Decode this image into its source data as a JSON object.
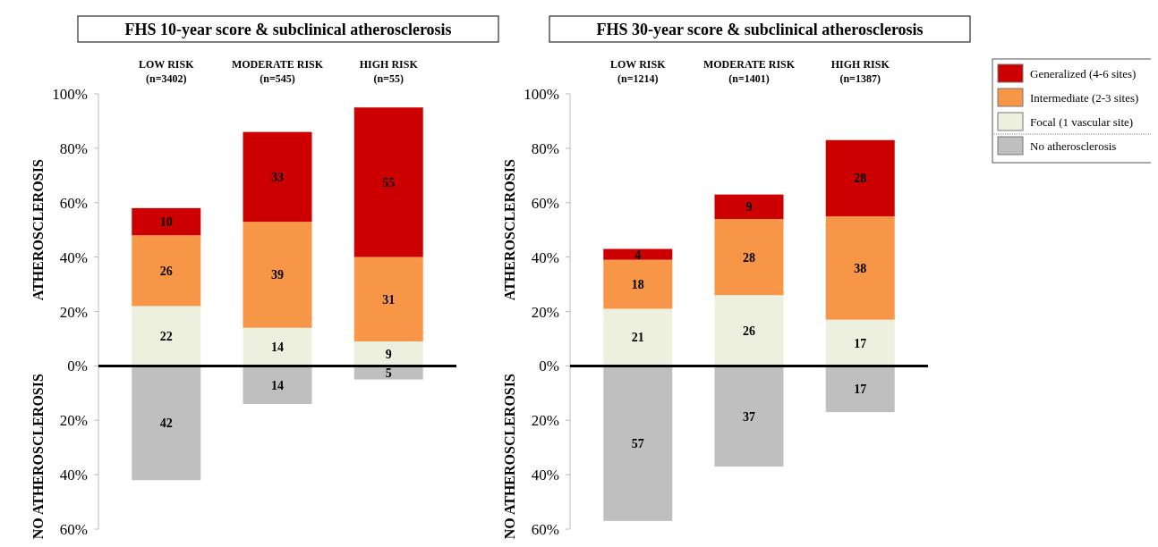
{
  "chart_data": [
    {
      "type": "bar",
      "title": "FHS 10-year score & subclinical atherosclerosis",
      "ylabel": "ATHEROSCLEROSIS",
      "annotations": [
        "NO ATHEROSCLEROSIS"
      ],
      "categories": [
        "LOW RISK\n(n=3402)",
        "MODERATE RISK\n(n=545)",
        "HIGH RISK\n(n=55)"
      ],
      "stacked": true,
      "legend": false,
      "data_labels": true,
      "ylim": [
        -60,
        100
      ],
      "yticks": [
        {
          "value": -60,
          "label": "60%"
        },
        {
          "value": -40,
          "label": "40%"
        },
        {
          "value": -20,
          "label": "20%"
        },
        {
          "value": 0,
          "label": "0%"
        },
        {
          "value": 20,
          "label": "20%"
        },
        {
          "value": 40,
          "label": "40%"
        },
        {
          "value": 60,
          "label": "60%"
        },
        {
          "value": 80,
          "label": "80%"
        },
        {
          "value": 100,
          "label": "100%"
        }
      ],
      "series": [
        {
          "color": "#bfbfbf",
          "values": [
            42,
            14,
            5
          ],
          "base": [
            -42,
            -14,
            -5
          ]
        },
        {
          "color": "#eef0df",
          "values": [
            22,
            14,
            9
          ]
        },
        {
          "color": "#f79646",
          "values": [
            26,
            39,
            31
          ]
        },
        {
          "color": "#cc0000",
          "values": [
            10,
            33,
            55
          ]
        }
      ]
    },
    {
      "type": "bar",
      "title": "FHS 30-year score & subclinical atherosclerosis",
      "ylabel": "ATHEROSCLEROSIS",
      "annotations": [
        "NO ATHEROSCLEROSIS"
      ],
      "categories": [
        "LOW RISK\n(n=1214)",
        "MODERATE RISK\n(n=1401)",
        "HIGH RISK\n(n=1387)"
      ],
      "stacked": true,
      "legend": "right",
      "data_labels": true,
      "ylim": [
        -60,
        100
      ],
      "yticks": [
        {
          "value": -60,
          "label": "60%"
        },
        {
          "value": -40,
          "label": "40%"
        },
        {
          "value": -20,
          "label": "20%"
        },
        {
          "value": 0,
          "label": "0%"
        },
        {
          "value": 20,
          "label": "20%"
        },
        {
          "value": 40,
          "label": "40%"
        },
        {
          "value": 60,
          "label": "60%"
        },
        {
          "value": 80,
          "label": "80%"
        },
        {
          "value": 100,
          "label": "100%"
        }
      ],
      "series": [
        {
          "name": "No atherosclerosis",
          "color": "#bfbfbf",
          "values": [
            57,
            37,
            17
          ],
          "base": [
            -57,
            -37,
            -17
          ]
        },
        {
          "name": "Focal (1 vascular site)",
          "color": "#eef0df",
          "values": [
            21,
            26,
            17
          ]
        },
        {
          "name": "Intermediate (2-3 sites)",
          "color": "#f79646",
          "values": [
            18,
            28,
            38
          ]
        },
        {
          "name": "Generalized (4-6 sites)",
          "color": "#cc0000",
          "values": [
            4,
            9,
            28
          ]
        }
      ]
    }
  ]
}
